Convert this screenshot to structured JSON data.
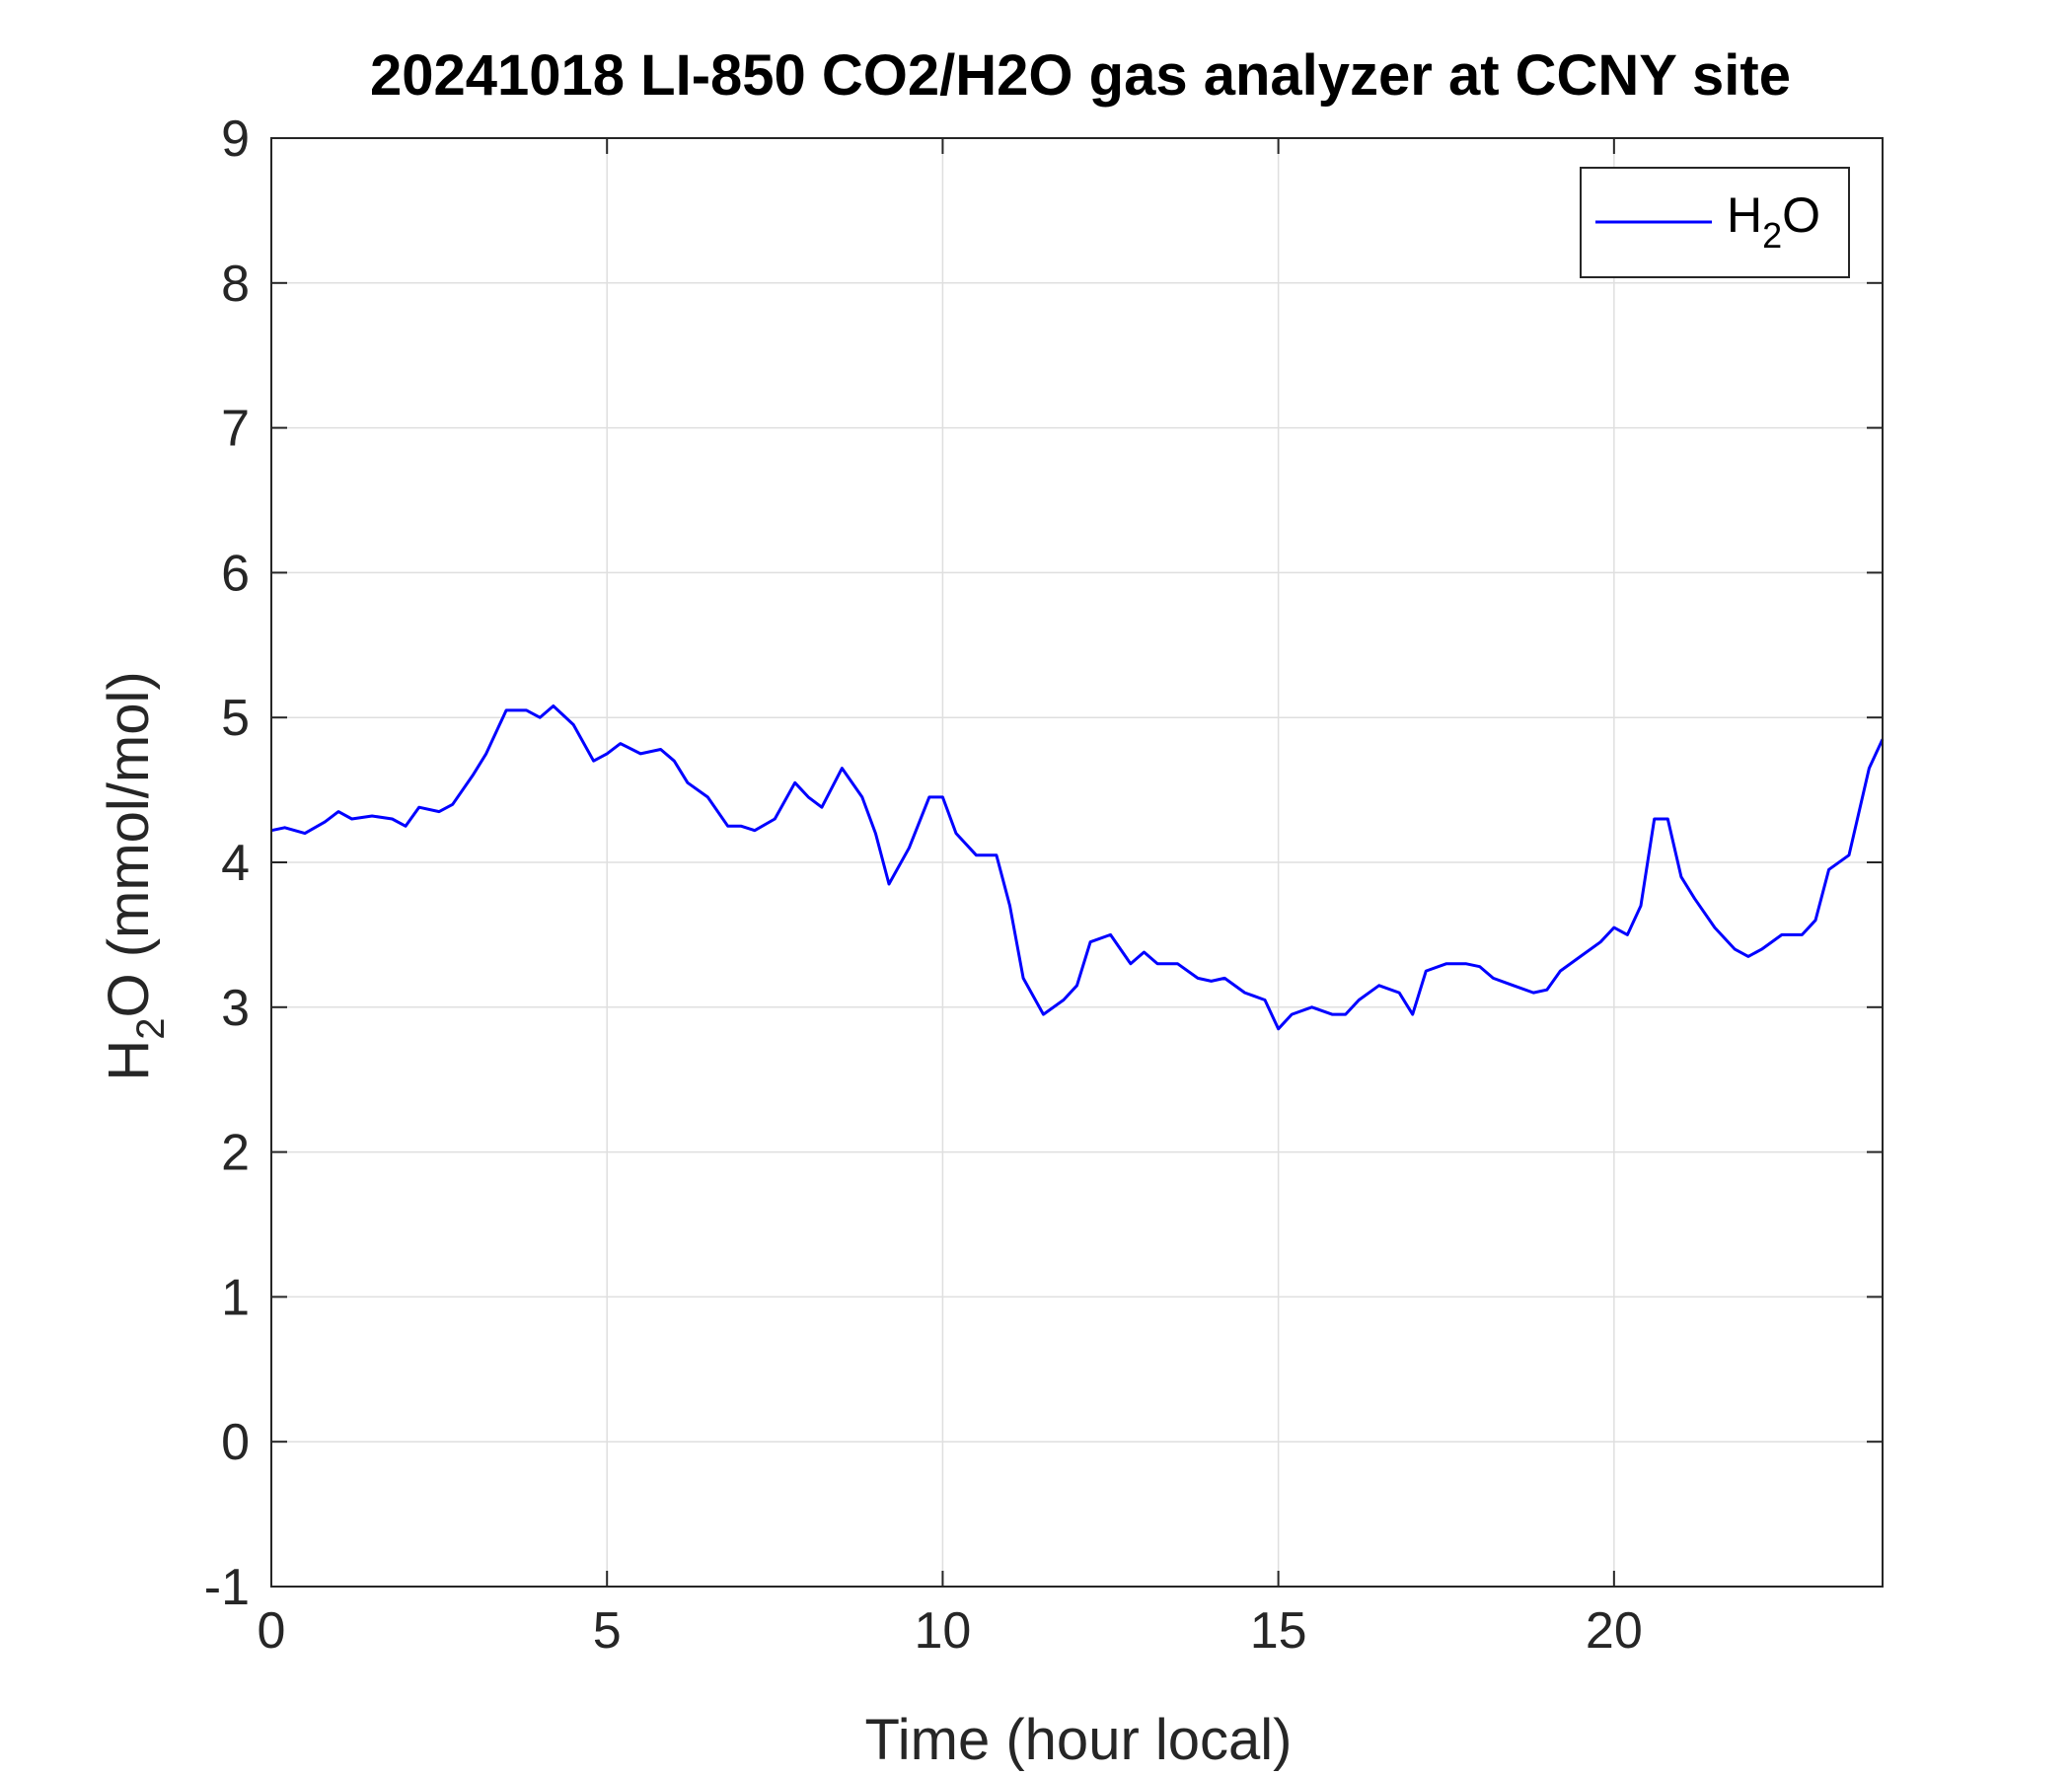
{
  "colors": {
    "series": "#0000ff",
    "grid": "#dfdfdf",
    "axis": "#262626",
    "background": "#ffffff"
  },
  "chart_data": {
    "type": "line",
    "title": "20241018 LI-850 CO2/H2O gas analyzer at CCNY site",
    "xlabel": "Time (hour local)",
    "ylabel_main": "H",
    "ylabel_sub": "2",
    "ylabel_rest": "O (mmol/mol)",
    "xlim": [
      0,
      24
    ],
    "ylim": [
      -1,
      9
    ],
    "xticks": [
      0,
      5,
      10,
      15,
      20
    ],
    "yticks": [
      -1,
      0,
      1,
      2,
      3,
      4,
      5,
      6,
      7,
      8,
      9
    ],
    "grid": true,
    "legend_position": "top-right",
    "legend": {
      "main": "H",
      "sub": "2",
      "rest": "O"
    },
    "series": [
      {
        "name": "H2O",
        "x": [
          0,
          0.2,
          0.5,
          0.8,
          1.0,
          1.2,
          1.5,
          1.8,
          2.0,
          2.2,
          2.5,
          2.7,
          3.0,
          3.2,
          3.5,
          3.8,
          4.0,
          4.2,
          4.5,
          4.8,
          5.0,
          5.2,
          5.5,
          5.8,
          6.0,
          6.2,
          6.5,
          6.8,
          7.0,
          7.2,
          7.5,
          7.8,
          8.0,
          8.2,
          8.5,
          8.8,
          9.0,
          9.2,
          9.5,
          9.8,
          10.0,
          10.2,
          10.5,
          10.8,
          11.0,
          11.2,
          11.5,
          11.8,
          12.0,
          12.2,
          12.5,
          12.8,
          13.0,
          13.2,
          13.5,
          13.8,
          14.0,
          14.2,
          14.5,
          14.8,
          15.0,
          15.2,
          15.5,
          15.8,
          16.0,
          16.2,
          16.5,
          16.8,
          17.0,
          17.2,
          17.5,
          17.8,
          18.0,
          18.2,
          18.5,
          18.8,
          19.0,
          19.2,
          19.5,
          19.8,
          20.0,
          20.2,
          20.4,
          20.6,
          20.8,
          21.0,
          21.2,
          21.5,
          21.8,
          22.0,
          22.2,
          22.5,
          22.8,
          23.0,
          23.2,
          23.5,
          23.8,
          24.0
        ],
        "values": [
          4.22,
          4.24,
          4.2,
          4.28,
          4.35,
          4.3,
          4.32,
          4.3,
          4.25,
          4.38,
          4.35,
          4.4,
          4.6,
          4.75,
          5.05,
          5.05,
          5.0,
          5.08,
          4.95,
          4.7,
          4.75,
          4.82,
          4.75,
          4.78,
          4.7,
          4.55,
          4.45,
          4.25,
          4.25,
          4.22,
          4.3,
          4.55,
          4.45,
          4.38,
          4.65,
          4.45,
          4.2,
          3.85,
          4.1,
          4.45,
          4.45,
          4.2,
          4.05,
          4.05,
          3.7,
          3.2,
          2.95,
          3.05,
          3.15,
          3.45,
          3.5,
          3.3,
          3.38,
          3.3,
          3.3,
          3.2,
          3.18,
          3.2,
          3.1,
          3.05,
          2.85,
          2.95,
          3.0,
          2.95,
          2.95,
          3.05,
          3.15,
          3.1,
          2.95,
          3.25,
          3.3,
          3.3,
          3.28,
          3.2,
          3.15,
          3.1,
          3.12,
          3.25,
          3.35,
          3.45,
          3.55,
          3.5,
          3.7,
          4.3,
          4.3,
          3.9,
          3.75,
          3.55,
          3.4,
          3.35,
          3.4,
          3.5,
          3.5,
          3.6,
          3.95,
          4.05,
          4.65,
          4.85
        ]
      }
    ]
  }
}
